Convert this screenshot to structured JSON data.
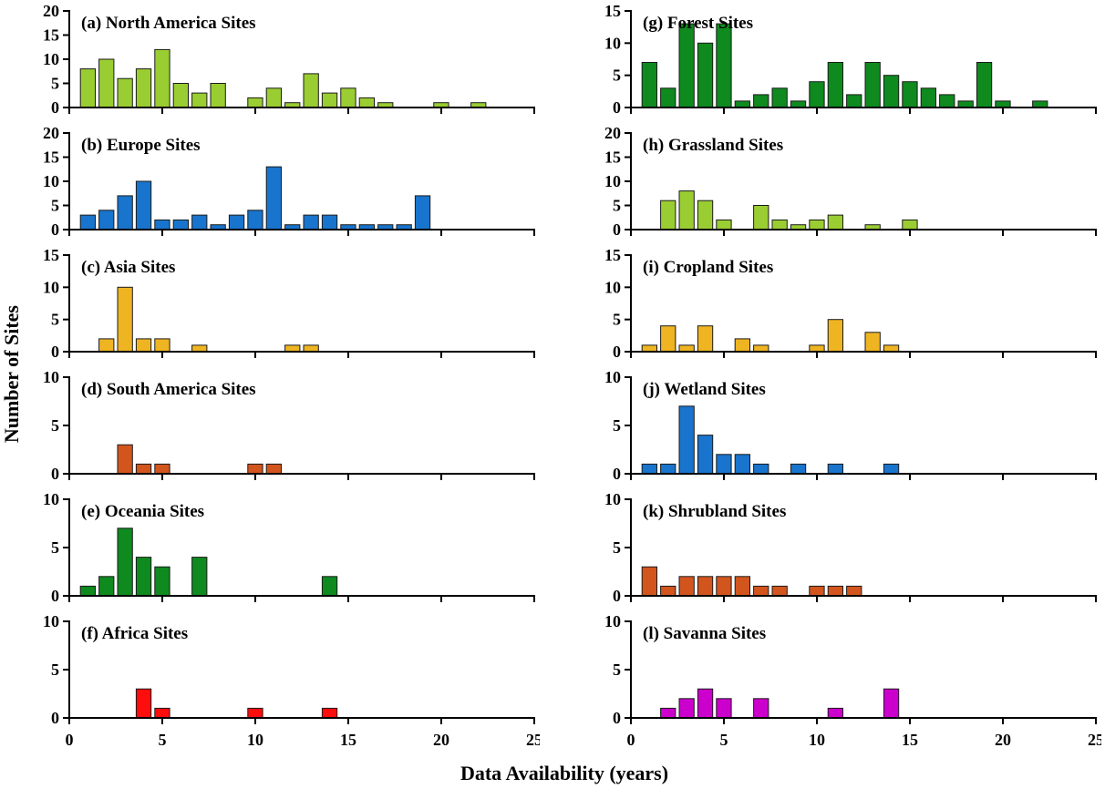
{
  "figure": {
    "ylabel": "Number of Sites",
    "xlabel": "Data Availability (years)"
  },
  "chart_data": [
    {
      "type": "bar",
      "panel_id": "a",
      "title": "(a) North America Sites",
      "column": "left",
      "row": 1,
      "color": "#9acd32",
      "xlim": [
        0,
        25
      ],
      "xticks": [
        0,
        5,
        10,
        15,
        20,
        25
      ],
      "ylim": [
        0,
        20
      ],
      "yticks": [
        0,
        5,
        10,
        15,
        20
      ],
      "x": [
        1,
        2,
        3,
        4,
        5,
        6,
        7,
        8,
        10,
        11,
        12,
        13,
        14,
        15,
        16,
        17,
        20,
        22
      ],
      "values": [
        8,
        10,
        6,
        8,
        12,
        5,
        3,
        5,
        2,
        4,
        1,
        7,
        3,
        4,
        2,
        1,
        1,
        1
      ]
    },
    {
      "type": "bar",
      "panel_id": "b",
      "title": "(b) Europe Sites",
      "column": "left",
      "row": 2,
      "color": "#1874cd",
      "xlim": [
        0,
        25
      ],
      "xticks": [
        0,
        5,
        10,
        15,
        20,
        25
      ],
      "ylim": [
        0,
        20
      ],
      "yticks": [
        0,
        5,
        10,
        15,
        20
      ],
      "x": [
        1,
        2,
        3,
        4,
        5,
        6,
        7,
        8,
        9,
        10,
        11,
        12,
        13,
        14,
        15,
        16,
        17,
        18,
        19
      ],
      "values": [
        3,
        4,
        7,
        10,
        2,
        2,
        3,
        1,
        3,
        4,
        13,
        1,
        3,
        3,
        1,
        1,
        1,
        1,
        7
      ]
    },
    {
      "type": "bar",
      "panel_id": "c",
      "title": "(c) Asia Sites",
      "column": "left",
      "row": 3,
      "color": "#eeb422",
      "xlim": [
        0,
        25
      ],
      "xticks": [
        0,
        5,
        10,
        15,
        20,
        25
      ],
      "ylim": [
        0,
        15
      ],
      "yticks": [
        0,
        5,
        10,
        15
      ],
      "x": [
        2,
        3,
        4,
        5,
        7,
        12,
        13
      ],
      "values": [
        2,
        10,
        2,
        2,
        1,
        1,
        1
      ]
    },
    {
      "type": "bar",
      "panel_id": "d",
      "title": "(d) South America Sites",
      "column": "left",
      "row": 4,
      "color": "#d2551e",
      "xlim": [
        0,
        25
      ],
      "xticks": [
        0,
        5,
        10,
        15,
        20,
        25
      ],
      "ylim": [
        0,
        10
      ],
      "yticks": [
        0,
        5,
        10
      ],
      "x": [
        3,
        4,
        5,
        10,
        11
      ],
      "values": [
        3,
        1,
        1,
        1,
        1
      ]
    },
    {
      "type": "bar",
      "panel_id": "e",
      "title": "(e) Oceania Sites",
      "column": "left",
      "row": 5,
      "color": "#0e8a1f",
      "xlim": [
        0,
        25
      ],
      "xticks": [
        0,
        5,
        10,
        15,
        20,
        25
      ],
      "ylim": [
        0,
        10
      ],
      "yticks": [
        0,
        5,
        10
      ],
      "x": [
        1,
        2,
        3,
        4,
        5,
        7,
        14
      ],
      "values": [
        1,
        2,
        7,
        4,
        3,
        4,
        2
      ]
    },
    {
      "type": "bar",
      "panel_id": "f",
      "title": "(f) Africa Sites",
      "column": "left",
      "row": 6,
      "color": "#fe0d0d",
      "xlim": [
        0,
        25
      ],
      "xticks": [
        0,
        5,
        10,
        15,
        20,
        25
      ],
      "ylim": [
        0,
        10
      ],
      "yticks": [
        0,
        5,
        10
      ],
      "x": [
        4,
        5,
        10,
        14
      ],
      "values": [
        3,
        1,
        1,
        1
      ]
    },
    {
      "type": "bar",
      "panel_id": "g",
      "title": "(g) Forest Sites",
      "column": "right",
      "row": 1,
      "color": "#0e8a1f",
      "xlim": [
        0,
        25
      ],
      "xticks": [
        0,
        5,
        10,
        15,
        20,
        25
      ],
      "ylim": [
        0,
        15
      ],
      "yticks": [
        0,
        5,
        10,
        15
      ],
      "x": [
        1,
        2,
        3,
        4,
        5,
        6,
        7,
        8,
        9,
        10,
        11,
        12,
        13,
        14,
        15,
        16,
        17,
        18,
        19,
        20,
        22
      ],
      "values": [
        7,
        3,
        13,
        10,
        13,
        1,
        2,
        3,
        1,
        4,
        7,
        2,
        7,
        5,
        4,
        3,
        2,
        1,
        7,
        1,
        1
      ]
    },
    {
      "type": "bar",
      "panel_id": "h",
      "title": "(h) Grassland Sites",
      "column": "right",
      "row": 2,
      "color": "#9acd32",
      "xlim": [
        0,
        25
      ],
      "xticks": [
        0,
        5,
        10,
        15,
        20,
        25
      ],
      "ylim": [
        0,
        20
      ],
      "yticks": [
        0,
        5,
        10,
        15,
        20
      ],
      "x": [
        2,
        3,
        4,
        5,
        7,
        8,
        9,
        10,
        11,
        13,
        15
      ],
      "values": [
        6,
        8,
        6,
        2,
        5,
        2,
        1,
        2,
        3,
        1,
        2
      ]
    },
    {
      "type": "bar",
      "panel_id": "i",
      "title": "(i) Cropland Sites",
      "column": "right",
      "row": 3,
      "color": "#eeb422",
      "xlim": [
        0,
        25
      ],
      "xticks": [
        0,
        5,
        10,
        15,
        20,
        25
      ],
      "ylim": [
        0,
        15
      ],
      "yticks": [
        0,
        5,
        10,
        15
      ],
      "x": [
        1,
        2,
        3,
        4,
        6,
        7,
        10,
        11,
        13,
        14
      ],
      "values": [
        1,
        4,
        1,
        4,
        2,
        1,
        1,
        5,
        3,
        1
      ]
    },
    {
      "type": "bar",
      "panel_id": "j",
      "title": "(j) Wetland Sites",
      "column": "right",
      "row": 4,
      "color": "#1874cd",
      "xlim": [
        0,
        25
      ],
      "xticks": [
        0,
        5,
        10,
        15,
        20,
        25
      ],
      "ylim": [
        0,
        10
      ],
      "yticks": [
        0,
        5,
        10
      ],
      "x": [
        1,
        2,
        3,
        4,
        5,
        6,
        7,
        9,
        11,
        14
      ],
      "values": [
        1,
        1,
        7,
        4,
        2,
        2,
        1,
        1,
        1,
        1
      ]
    },
    {
      "type": "bar",
      "panel_id": "k",
      "title": "(k) Shrubland Sites",
      "column": "right",
      "row": 5,
      "color": "#d2551e",
      "xlim": [
        0,
        25
      ],
      "xticks": [
        0,
        5,
        10,
        15,
        20,
        25
      ],
      "ylim": [
        0,
        10
      ],
      "yticks": [
        0,
        5,
        10
      ],
      "x": [
        1,
        2,
        3,
        4,
        5,
        6,
        7,
        8,
        10,
        11,
        12
      ],
      "values": [
        3,
        1,
        2,
        2,
        2,
        2,
        1,
        1,
        1,
        1,
        1
      ]
    },
    {
      "type": "bar",
      "panel_id": "l",
      "title": "(l) Savanna Sites",
      "column": "right",
      "row": 6,
      "color": "#cc00cc",
      "xlim": [
        0,
        25
      ],
      "xticks": [
        0,
        5,
        10,
        15,
        20,
        25
      ],
      "ylim": [
        0,
        10
      ],
      "yticks": [
        0,
        5,
        10
      ],
      "x": [
        2,
        3,
        4,
        5,
        7,
        11,
        14
      ],
      "values": [
        1,
        2,
        3,
        2,
        2,
        1,
        3
      ]
    }
  ]
}
